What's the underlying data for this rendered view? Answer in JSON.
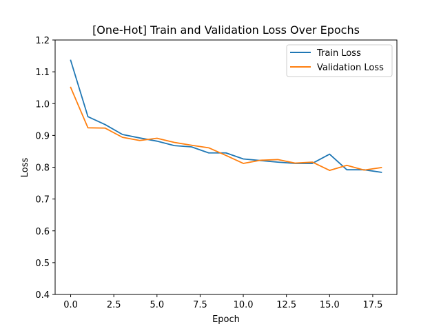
{
  "chart_data": {
    "type": "line",
    "title": "[One-Hot] Train and Validation Loss Over Epochs",
    "xlabel": "Epoch",
    "ylabel": "Loss",
    "xlim": [
      -0.9,
      18.9
    ],
    "ylim": [
      0.4,
      1.2
    ],
    "xticks": [
      0,
      2.5,
      5,
      7.5,
      10,
      12.5,
      15,
      17.5
    ],
    "xtick_labels": [
      "0.0",
      "2.5",
      "5.0",
      "7.5",
      "10.0",
      "12.5",
      "15.0",
      "17.5"
    ],
    "yticks": [
      0.4,
      0.5,
      0.6,
      0.7,
      0.8,
      0.9,
      1.0,
      1.1,
      1.2
    ],
    "ytick_labels": [
      "0.4",
      "0.5",
      "0.6",
      "0.7",
      "0.8",
      "0.9",
      "1.0",
      "1.1",
      "1.2"
    ],
    "grid": false,
    "legend_position": "top-right",
    "x": [
      0,
      1,
      2,
      3,
      4,
      5,
      6,
      7,
      8,
      9,
      10,
      11,
      12,
      13,
      14,
      15,
      16,
      17,
      18
    ],
    "series": [
      {
        "name": "Train Loss",
        "color": "#1f77b4",
        "values": [
          1.136,
          0.959,
          0.934,
          0.903,
          0.892,
          0.882,
          0.868,
          0.864,
          0.845,
          0.845,
          0.826,
          0.821,
          0.816,
          0.812,
          0.812,
          0.841,
          0.792,
          0.792,
          0.784
        ]
      },
      {
        "name": "Validation Loss",
        "color": "#ff7f0e",
        "values": [
          1.051,
          0.924,
          0.923,
          0.894,
          0.884,
          0.891,
          0.878,
          0.869,
          0.861,
          0.837,
          0.812,
          0.822,
          0.824,
          0.813,
          0.816,
          0.79,
          0.806,
          0.791,
          0.799
        ]
      }
    ]
  }
}
